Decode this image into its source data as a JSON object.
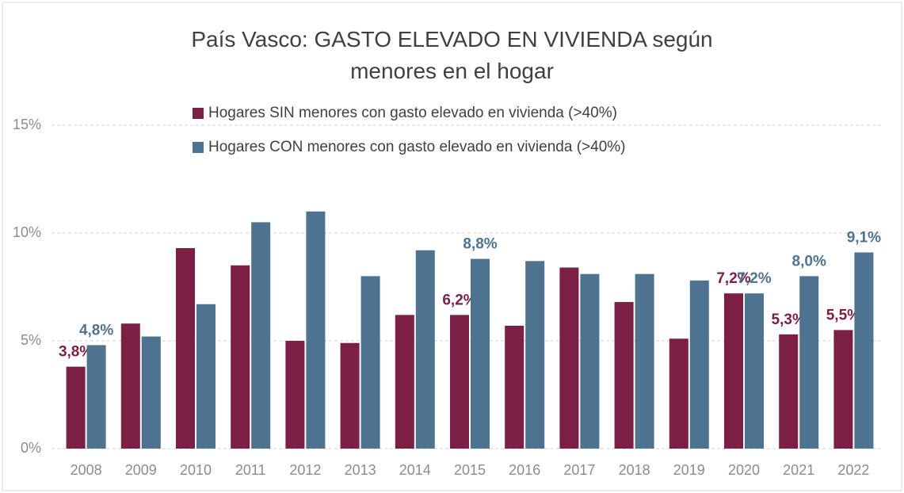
{
  "chart_data": {
    "type": "bar",
    "title": "País Vasco: GASTO ELEVADO EN VIVIENDA según menores en el hogar",
    "categories": [
      "2008",
      "2009",
      "2010",
      "2011",
      "2012",
      "2013",
      "2014",
      "2015",
      "2016",
      "2017",
      "2018",
      "2019",
      "2020",
      "2021",
      "2022"
    ],
    "series": [
      {
        "name": "Hogares SIN menores con gasto elevado en vivienda (>40%)",
        "color": "#7b1f45",
        "values": [
          3.8,
          5.8,
          9.3,
          8.5,
          5.0,
          4.9,
          6.2,
          6.2,
          5.7,
          8.4,
          6.8,
          5.1,
          7.2,
          5.3,
          5.5
        ],
        "value_labels": [
          "3,8%",
          null,
          null,
          null,
          null,
          null,
          null,
          "6,2%",
          null,
          null,
          null,
          null,
          "7,2%",
          "5,3%",
          "5,5%"
        ]
      },
      {
        "name": "Hogares CON menores con gasto elevado en vivienda (>40%)",
        "color": "#4e7390",
        "values": [
          4.8,
          5.2,
          6.7,
          10.5,
          11.0,
          8.0,
          9.2,
          8.8,
          8.7,
          8.1,
          8.1,
          7.8,
          7.2,
          8.0,
          9.1
        ],
        "value_labels": [
          "4,8%",
          null,
          null,
          null,
          null,
          null,
          null,
          "8,8%",
          null,
          null,
          null,
          null,
          "7,2%",
          "8,0%",
          "9,1%"
        ]
      }
    ],
    "ylim": [
      0,
      15
    ],
    "yticks": [
      {
        "value": 0,
        "label": "0%"
      },
      {
        "value": 5,
        "label": "5%"
      },
      {
        "value": 10,
        "label": "10%"
      },
      {
        "value": 15,
        "label": "15%"
      }
    ],
    "grid": true
  }
}
